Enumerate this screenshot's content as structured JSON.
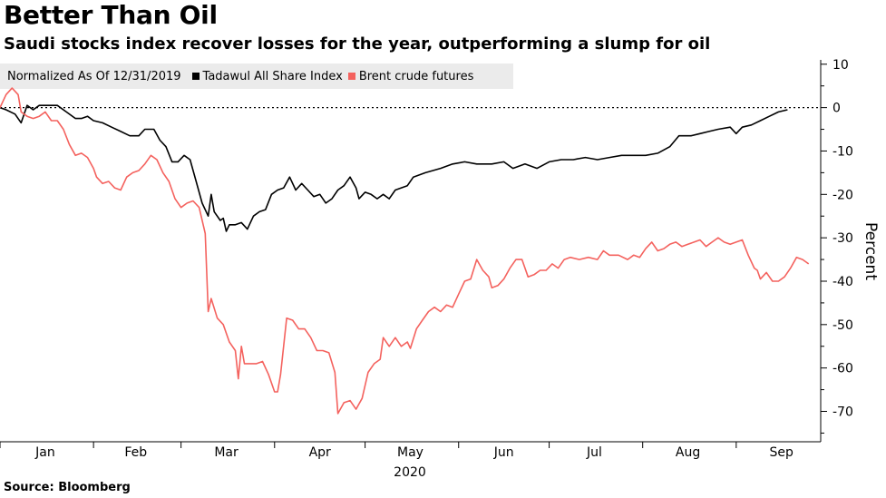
{
  "header": {
    "title": "Better Than Oil",
    "subtitle": "Saudi stocks index recover losses for the year, outperforming a slump for oil"
  },
  "legend": {
    "note": "Normalized As Of 12/31/2019",
    "items": [
      {
        "label": "Tadawul All Share Index",
        "color": "#000000"
      },
      {
        "label": "Brent crude futures",
        "color": "#f4625e"
      }
    ]
  },
  "footer": {
    "source": "Source: Bloomberg"
  },
  "chart_data": {
    "type": "line",
    "title": "Better Than Oil",
    "subtitle": "Saudi stocks index recover losses for the year, outperforming a slump for oil",
    "xlabel": "2020",
    "ylabel": "Percent",
    "x_unit": "day of year 2020",
    "xlim": [
      0,
      268
    ],
    "ylim": [
      -77,
      11
    ],
    "y_ticks": [
      10,
      0,
      -10,
      -20,
      -30,
      -40,
      -50,
      -60,
      -70
    ],
    "y_tick_labels": [
      "10",
      "0",
      "-10",
      "-20",
      "-30",
      "-40",
      "-50",
      "-60",
      "-70"
    ],
    "x_ticks": [
      {
        "label": "Jan",
        "at": 15
      },
      {
        "label": "Feb",
        "at": 45
      },
      {
        "label": "Mar",
        "at": 75
      },
      {
        "label": "Apr",
        "at": 106
      },
      {
        "label": "May",
        "at": 136
      },
      {
        "label": "Jun",
        "at": 167
      },
      {
        "label": "Jul",
        "at": 197
      },
      {
        "label": "Aug",
        "at": 228
      },
      {
        "label": "Sep",
        "at": 259
      }
    ],
    "month_boundaries": [
      0,
      31,
      60,
      91,
      121,
      152,
      182,
      213,
      244
    ],
    "reference_line": {
      "y": 0,
      "style": "dotted"
    },
    "legend_position": "top-left",
    "series": [
      {
        "name": "Tadawul All Share Index",
        "color": "#000000",
        "points": [
          [
            0,
            0
          ],
          [
            2,
            -0.5
          ],
          [
            5,
            -1.5
          ],
          [
            7,
            -3.5
          ],
          [
            9,
            0.5
          ],
          [
            11,
            -0.5
          ],
          [
            13,
            0.5
          ],
          [
            16,
            0.5
          ],
          [
            19,
            0.5
          ],
          [
            22,
            -1
          ],
          [
            25,
            -2.5
          ],
          [
            27,
            -2.5
          ],
          [
            29,
            -2
          ],
          [
            31,
            -3
          ],
          [
            34,
            -3.5
          ],
          [
            37,
            -4.5
          ],
          [
            40,
            -5.5
          ],
          [
            43,
            -6.5
          ],
          [
            46,
            -6.5
          ],
          [
            48,
            -5
          ],
          [
            51,
            -5
          ],
          [
            53,
            -7.5
          ],
          [
            55,
            -9
          ],
          [
            57,
            -12.5
          ],
          [
            59,
            -12.5
          ],
          [
            61,
            -11
          ],
          [
            63,
            -12
          ],
          [
            65,
            -17
          ],
          [
            67,
            -22
          ],
          [
            69,
            -25
          ],
          [
            70,
            -20
          ],
          [
            71,
            -24
          ],
          [
            73,
            -26
          ],
          [
            74,
            -25.5
          ],
          [
            75,
            -28.5
          ],
          [
            76,
            -27
          ],
          [
            78,
            -27
          ],
          [
            80,
            -26.5
          ],
          [
            82,
            -28
          ],
          [
            84,
            -25
          ],
          [
            86,
            -24
          ],
          [
            88,
            -23.5
          ],
          [
            90,
            -20
          ],
          [
            92,
            -19
          ],
          [
            94,
            -18.5
          ],
          [
            96,
            -16
          ],
          [
            98,
            -19
          ],
          [
            100,
            -17.5
          ],
          [
            102,
            -19
          ],
          [
            104,
            -20.5
          ],
          [
            106,
            -20
          ],
          [
            108,
            -22
          ],
          [
            110,
            -21
          ],
          [
            112,
            -19
          ],
          [
            114,
            -18
          ],
          [
            116,
            -16
          ],
          [
            118,
            -18.5
          ],
          [
            119,
            -21
          ],
          [
            121,
            -19.5
          ],
          [
            123,
            -20
          ],
          [
            125,
            -21
          ],
          [
            127,
            -20
          ],
          [
            129,
            -21
          ],
          [
            131,
            -19
          ],
          [
            133,
            -18.5
          ],
          [
            135,
            -18
          ],
          [
            137,
            -16
          ],
          [
            141,
            -15
          ],
          [
            146,
            -14
          ],
          [
            150,
            -13
          ],
          [
            154,
            -12.5
          ],
          [
            158,
            -13
          ],
          [
            163,
            -13
          ],
          [
            167,
            -12.5
          ],
          [
            170,
            -14
          ],
          [
            174,
            -13
          ],
          [
            178,
            -14
          ],
          [
            182,
            -12.5
          ],
          [
            186,
            -12
          ],
          [
            190,
            -12
          ],
          [
            194,
            -11.5
          ],
          [
            198,
            -12
          ],
          [
            202,
            -11.5
          ],
          [
            206,
            -11
          ],
          [
            210,
            -11
          ],
          [
            214,
            -11
          ],
          [
            218,
            -10.5
          ],
          [
            222,
            -9
          ],
          [
            225,
            -6.5
          ],
          [
            229,
            -6.5
          ],
          [
            232,
            -6
          ],
          [
            235,
            -5.5
          ],
          [
            238,
            -5
          ],
          [
            242,
            -4.5
          ],
          [
            244,
            -6
          ],
          [
            246,
            -4.5
          ],
          [
            249,
            -4
          ],
          [
            252,
            -3
          ],
          [
            255,
            -2
          ],
          [
            258,
            -1
          ],
          [
            261,
            -0.5
          ]
        ]
      },
      {
        "name": "Brent crude futures",
        "color": "#f4625e",
        "points": [
          [
            0,
            0
          ],
          [
            2,
            3
          ],
          [
            4,
            4.5
          ],
          [
            6,
            3
          ],
          [
            7,
            -1
          ],
          [
            9,
            -2
          ],
          [
            11,
            -2.5
          ],
          [
            13,
            -2
          ],
          [
            15,
            -1
          ],
          [
            17,
            -3
          ],
          [
            19,
            -3
          ],
          [
            21,
            -5
          ],
          [
            23,
            -8.5
          ],
          [
            25,
            -11
          ],
          [
            27,
            -10.5
          ],
          [
            29,
            -11.5
          ],
          [
            31,
            -14
          ],
          [
            32,
            -16
          ],
          [
            34,
            -17.5
          ],
          [
            36,
            -17
          ],
          [
            38,
            -18.5
          ],
          [
            40,
            -19
          ],
          [
            42,
            -16
          ],
          [
            44,
            -15
          ],
          [
            46,
            -14.5
          ],
          [
            48,
            -13
          ],
          [
            50,
            -11
          ],
          [
            52,
            -12
          ],
          [
            54,
            -15
          ],
          [
            56,
            -17
          ],
          [
            58,
            -21
          ],
          [
            60,
            -23
          ],
          [
            62,
            -22
          ],
          [
            64,
            -21.5
          ],
          [
            66,
            -23
          ],
          [
            68,
            -29
          ],
          [
            69,
            -47
          ],
          [
            70,
            -44
          ],
          [
            72,
            -48.5
          ],
          [
            74,
            -50
          ],
          [
            76,
            -54
          ],
          [
            78,
            -56
          ],
          [
            79,
            -62.5
          ],
          [
            80,
            -55
          ],
          [
            81,
            -59
          ],
          [
            83,
            -59
          ],
          [
            85,
            -59
          ],
          [
            87,
            -58.5
          ],
          [
            89,
            -61.5
          ],
          [
            91,
            -65.5
          ],
          [
            92,
            -65.5
          ],
          [
            93,
            -61.5
          ],
          [
            95,
            -48.5
          ],
          [
            97,
            -49
          ],
          [
            99,
            -51
          ],
          [
            101,
            -51
          ],
          [
            103,
            -53
          ],
          [
            105,
            -56
          ],
          [
            107,
            -56
          ],
          [
            109,
            -56.5
          ],
          [
            111,
            -61
          ],
          [
            112,
            -70.5
          ],
          [
            114,
            -68
          ],
          [
            116,
            -67.5
          ],
          [
            118,
            -69.5
          ],
          [
            120,
            -67
          ],
          [
            122,
            -61
          ],
          [
            124,
            -59
          ],
          [
            126,
            -58
          ],
          [
            127,
            -53
          ],
          [
            129,
            -55
          ],
          [
            131,
            -53
          ],
          [
            133,
            -55
          ],
          [
            135,
            -54
          ],
          [
            136,
            -55.5
          ],
          [
            138,
            -51
          ],
          [
            140,
            -49
          ],
          [
            142,
            -47
          ],
          [
            144,
            -46
          ],
          [
            146,
            -47
          ],
          [
            148,
            -45.5
          ],
          [
            150,
            -46
          ],
          [
            152,
            -43
          ],
          [
            154,
            -40
          ],
          [
            156,
            -39.5
          ],
          [
            158,
            -35
          ],
          [
            160,
            -37.5
          ],
          [
            162,
            -39
          ],
          [
            163,
            -41.5
          ],
          [
            165,
            -41
          ],
          [
            167,
            -39.5
          ],
          [
            169,
            -37
          ],
          [
            171,
            -35
          ],
          [
            173,
            -35
          ],
          [
            175,
            -39
          ],
          [
            177,
            -38.5
          ],
          [
            179,
            -37.5
          ],
          [
            181,
            -37.5
          ],
          [
            183,
            -36
          ],
          [
            185,
            -37
          ],
          [
            187,
            -35
          ],
          [
            189,
            -34.5
          ],
          [
            192,
            -35
          ],
          [
            195,
            -34.5
          ],
          [
            198,
            -35
          ],
          [
            200,
            -33
          ],
          [
            202,
            -34
          ],
          [
            205,
            -34
          ],
          [
            208,
            -35
          ],
          [
            210,
            -34
          ],
          [
            212,
            -34.5
          ],
          [
            214,
            -32.5
          ],
          [
            216,
            -31
          ],
          [
            218,
            -33
          ],
          [
            220,
            -32.5
          ],
          [
            222,
            -31.5
          ],
          [
            224,
            -31
          ],
          [
            226,
            -32
          ],
          [
            228,
            -31.5
          ],
          [
            230,
            -31
          ],
          [
            232,
            -30.5
          ],
          [
            234,
            -32
          ],
          [
            236,
            -31
          ],
          [
            238,
            -30
          ],
          [
            240,
            -31
          ],
          [
            242,
            -31.5
          ],
          [
            244,
            -31
          ],
          [
            246,
            -30.5
          ],
          [
            248,
            -34
          ],
          [
            250,
            -37
          ],
          [
            251,
            -37.5
          ],
          [
            252,
            -39.5
          ],
          [
            254,
            -38
          ],
          [
            256,
            -40
          ],
          [
            258,
            -40
          ],
          [
            260,
            -39
          ],
          [
            262,
            -37
          ],
          [
            264,
            -34.5
          ],
          [
            266,
            -35
          ],
          [
            268,
            -36
          ]
        ]
      }
    ]
  }
}
